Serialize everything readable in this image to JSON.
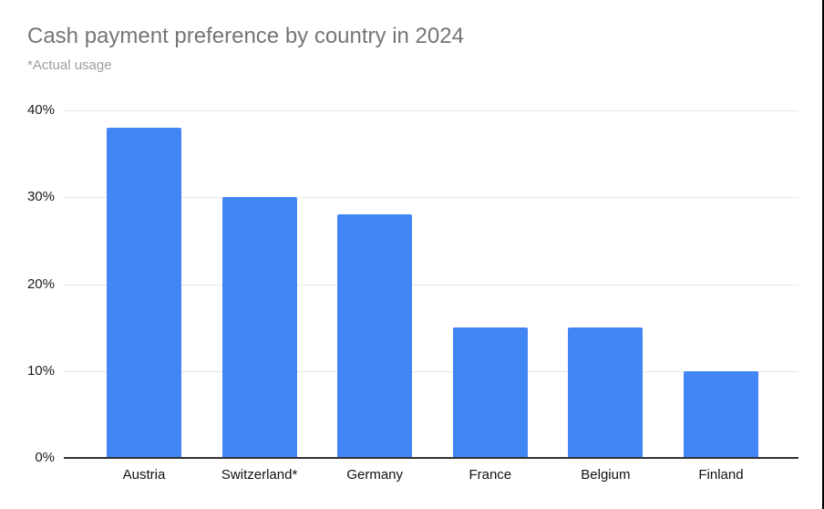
{
  "chart": {
    "title_color": "#757575",
    "subtitle_color": "#9e9e9e",
    "bar_color": "#4285f4",
    "gridline_color": "#e6e6e6",
    "axis_line_color": "#333333",
    "tick_label_color": "#1c1c1c",
    "right_edge_line_color": "#000000"
  },
  "chart_data": {
    "type": "bar",
    "title": "Cash payment preference by country in 2024",
    "subtitle": "*Actual usage",
    "categories": [
      "Austria",
      "Switzerland*",
      "Germany",
      "France",
      "Belgium",
      "Finland"
    ],
    "values": [
      38,
      30,
      28,
      15,
      15,
      10
    ],
    "xlabel": "",
    "ylabel": "",
    "ylim": [
      0,
      40
    ],
    "yticks": [
      0,
      10,
      20,
      30,
      40
    ],
    "ytick_labels": [
      "0%",
      "10%",
      "20%",
      "30%",
      "40%"
    ],
    "grid": true,
    "legend": "none",
    "bar_color": "#4285f4"
  }
}
